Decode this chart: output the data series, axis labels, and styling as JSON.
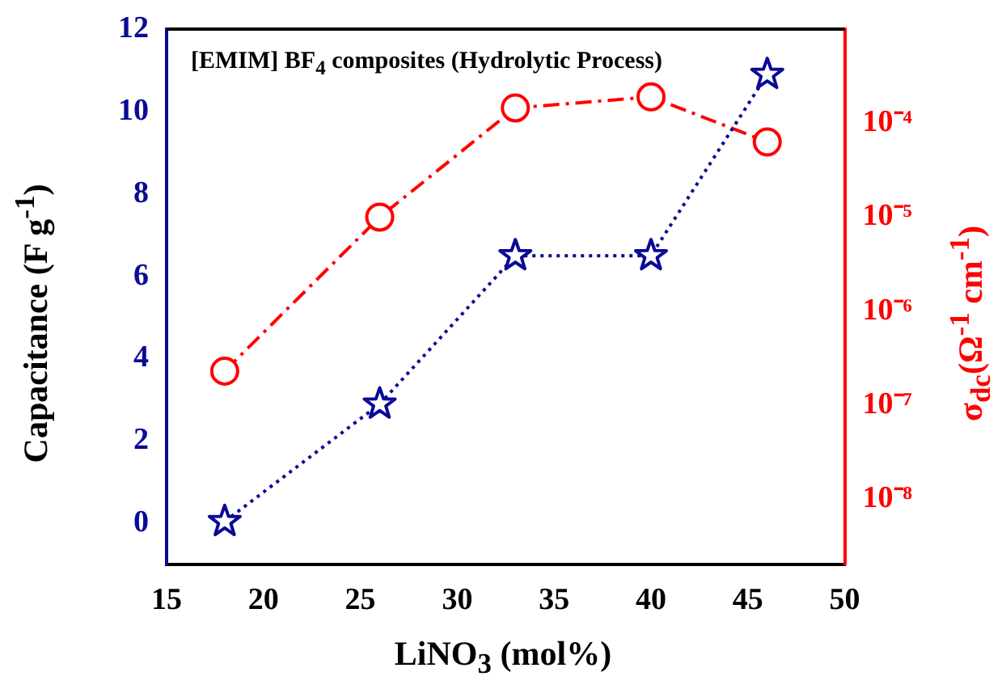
{
  "chart_data": {
    "type": "line",
    "xlabel": "LiNO$_{3}$ (mol%)",
    "ylabel": "Capacitance (F g$^{-1}$)",
    "y2label": "σ$_{dc}$(Ω$^{-1}$ cm$^{-1}$)",
    "annotations": [
      "[EMIM] BF$_{4}$ composites (Hydrolytic Process)"
    ],
    "x": [
      18,
      26,
      33,
      40,
      46
    ],
    "series": [
      {
        "color": "#0a0a96",
        "values": [
          0.05,
          2.9,
          6.5,
          6.5,
          10.9
        ],
        "marker": "star",
        "line_style": "dotted"
      },
      {
        "color": "#ff0000",
        "values": [
          2.3e-07,
          1e-05,
          0.000145,
          0.00019,
          6.3e-05
        ],
        "axis": "y2",
        "marker": "circle",
        "line_style": "dashed"
      }
    ],
    "xlim": [
      15,
      50
    ],
    "xticks": [
      15,
      20,
      25,
      30,
      35,
      40,
      45,
      50
    ],
    "ylim": [
      -1,
      12
    ],
    "yticks": [
      0,
      2,
      4,
      6,
      8,
      10,
      12
    ],
    "y2lim": [
      2e-09,
      0.001
    ],
    "y2ticks": [
      {
        "value": 1e-08,
        "label": "10⁻⁸"
      },
      {
        "value": 1e-07,
        "label": "10⁻⁷"
      },
      {
        "value": 1e-06,
        "label": "10⁻⁶"
      },
      {
        "value": 1e-05,
        "label": "10⁻⁵"
      },
      {
        "value": 0.0001,
        "label": "10⁻⁴"
      }
    ],
    "log": "y2",
    "grid": false,
    "legend": false
  }
}
